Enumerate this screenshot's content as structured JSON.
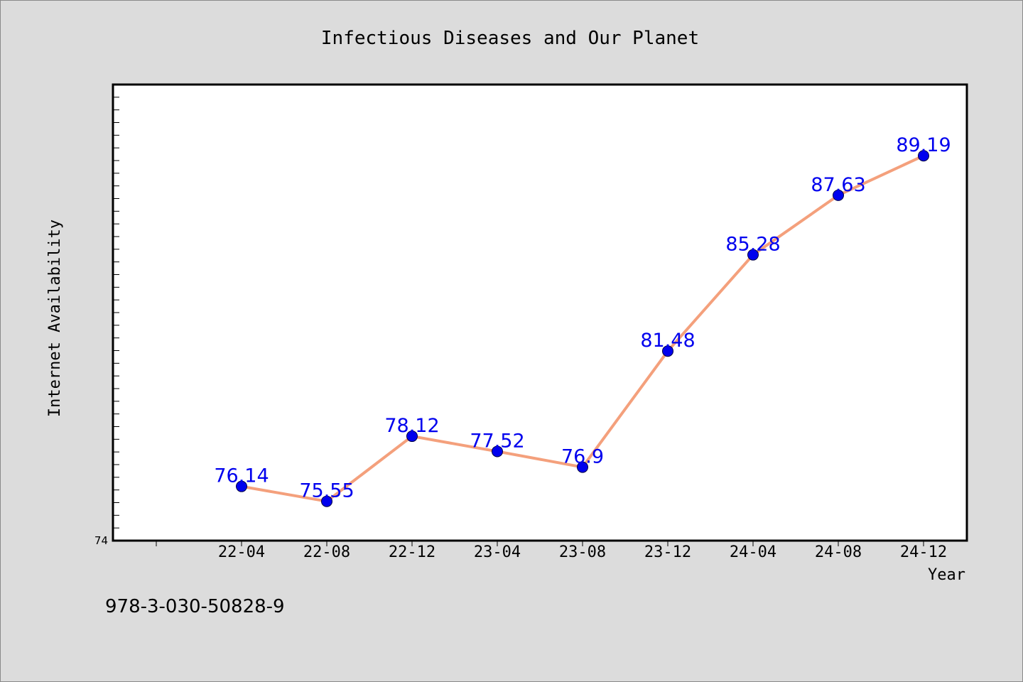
{
  "chart_data": {
    "type": "line",
    "title": "Infectious Diseases and Our Planet",
    "xlabel": "Year",
    "ylabel": "Internet Availability",
    "categories": [
      "22-04",
      "22-08",
      "22-12",
      "23-04",
      "23-08",
      "23-12",
      "24-04",
      "24-08",
      "24-12"
    ],
    "series": [
      {
        "values": [
          76.14,
          75.55,
          78.12,
          77.52,
          76.9,
          81.48,
          85.28,
          87.63,
          89.19
        ]
      }
    ],
    "data_labels": [
      "76.14",
      "75.55",
      "78.12",
      "77.52",
      "76.9",
      "81.48",
      "85.28",
      "87.63",
      "89.19"
    ],
    "ylim": [
      74,
      92
    ],
    "y_tick_labels": [
      "74"
    ],
    "line_color": "#f4a07c",
    "marker_color": "#0000ee",
    "label_color": "#0000ee",
    "grid": false,
    "legend": "none"
  },
  "footer_text": "978-3-030-50828-9"
}
